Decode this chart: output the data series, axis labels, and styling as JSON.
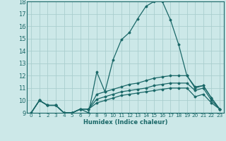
{
  "xlabel": "Humidex (Indice chaleur)",
  "background_color": "#cce8e8",
  "grid_color": "#aacece",
  "line_color": "#1a6868",
  "xlim": [
    -0.5,
    23.5
  ],
  "ylim": [
    9,
    18
  ],
  "yticks": [
    9,
    10,
    11,
    12,
    13,
    14,
    15,
    16,
    17,
    18
  ],
  "xticks": [
    0,
    1,
    2,
    3,
    4,
    5,
    6,
    7,
    8,
    9,
    10,
    11,
    12,
    13,
    14,
    15,
    16,
    17,
    18,
    19,
    20,
    21,
    22,
    23
  ],
  "lines": [
    {
      "x": [
        0,
        1,
        2,
        3,
        4,
        5,
        6,
        7,
        8,
        9,
        10,
        11,
        12,
        13,
        14,
        15,
        16,
        17,
        18,
        19,
        20,
        21,
        22,
        23
      ],
      "y": [
        9,
        10,
        9.6,
        9.6,
        9,
        9,
        9.3,
        9,
        12.3,
        10.7,
        13.3,
        14.9,
        15.5,
        16.6,
        17.6,
        18,
        18,
        16.5,
        14.5,
        12,
        11,
        11.2,
        10.2,
        9.3
      ]
    },
    {
      "x": [
        0,
        1,
        2,
        3,
        4,
        5,
        6,
        7,
        8,
        9,
        10,
        11,
        12,
        13,
        14,
        15,
        16,
        17,
        18,
        19,
        20,
        21,
        22,
        23
      ],
      "y": [
        9,
        10,
        9.6,
        9.6,
        9,
        9,
        9.3,
        9.3,
        10.5,
        10.7,
        10.9,
        11.1,
        11.3,
        11.4,
        11.6,
        11.8,
        11.9,
        12.0,
        12.0,
        12.0,
        11.1,
        11.2,
        10.2,
        9.3
      ]
    },
    {
      "x": [
        0,
        1,
        2,
        3,
        4,
        5,
        6,
        7,
        8,
        9,
        10,
        11,
        12,
        13,
        14,
        15,
        16,
        17,
        18,
        19,
        20,
        21,
        22,
        23
      ],
      "y": [
        9,
        10,
        9.6,
        9.6,
        9,
        9,
        9.3,
        9.3,
        10.1,
        10.3,
        10.5,
        10.7,
        10.8,
        10.9,
        11.0,
        11.2,
        11.3,
        11.4,
        11.4,
        11.4,
        10.8,
        11.0,
        10.0,
        9.3
      ]
    },
    {
      "x": [
        0,
        1,
        2,
        3,
        4,
        5,
        6,
        7,
        8,
        9,
        10,
        11,
        12,
        13,
        14,
        15,
        16,
        17,
        18,
        19,
        20,
        21,
        22,
        23
      ],
      "y": [
        9,
        10,
        9.6,
        9.6,
        9,
        9,
        9.3,
        9.3,
        9.8,
        10.0,
        10.2,
        10.4,
        10.5,
        10.6,
        10.7,
        10.8,
        10.9,
        11.0,
        11.0,
        11.0,
        10.3,
        10.5,
        9.8,
        9.3
      ]
    }
  ]
}
